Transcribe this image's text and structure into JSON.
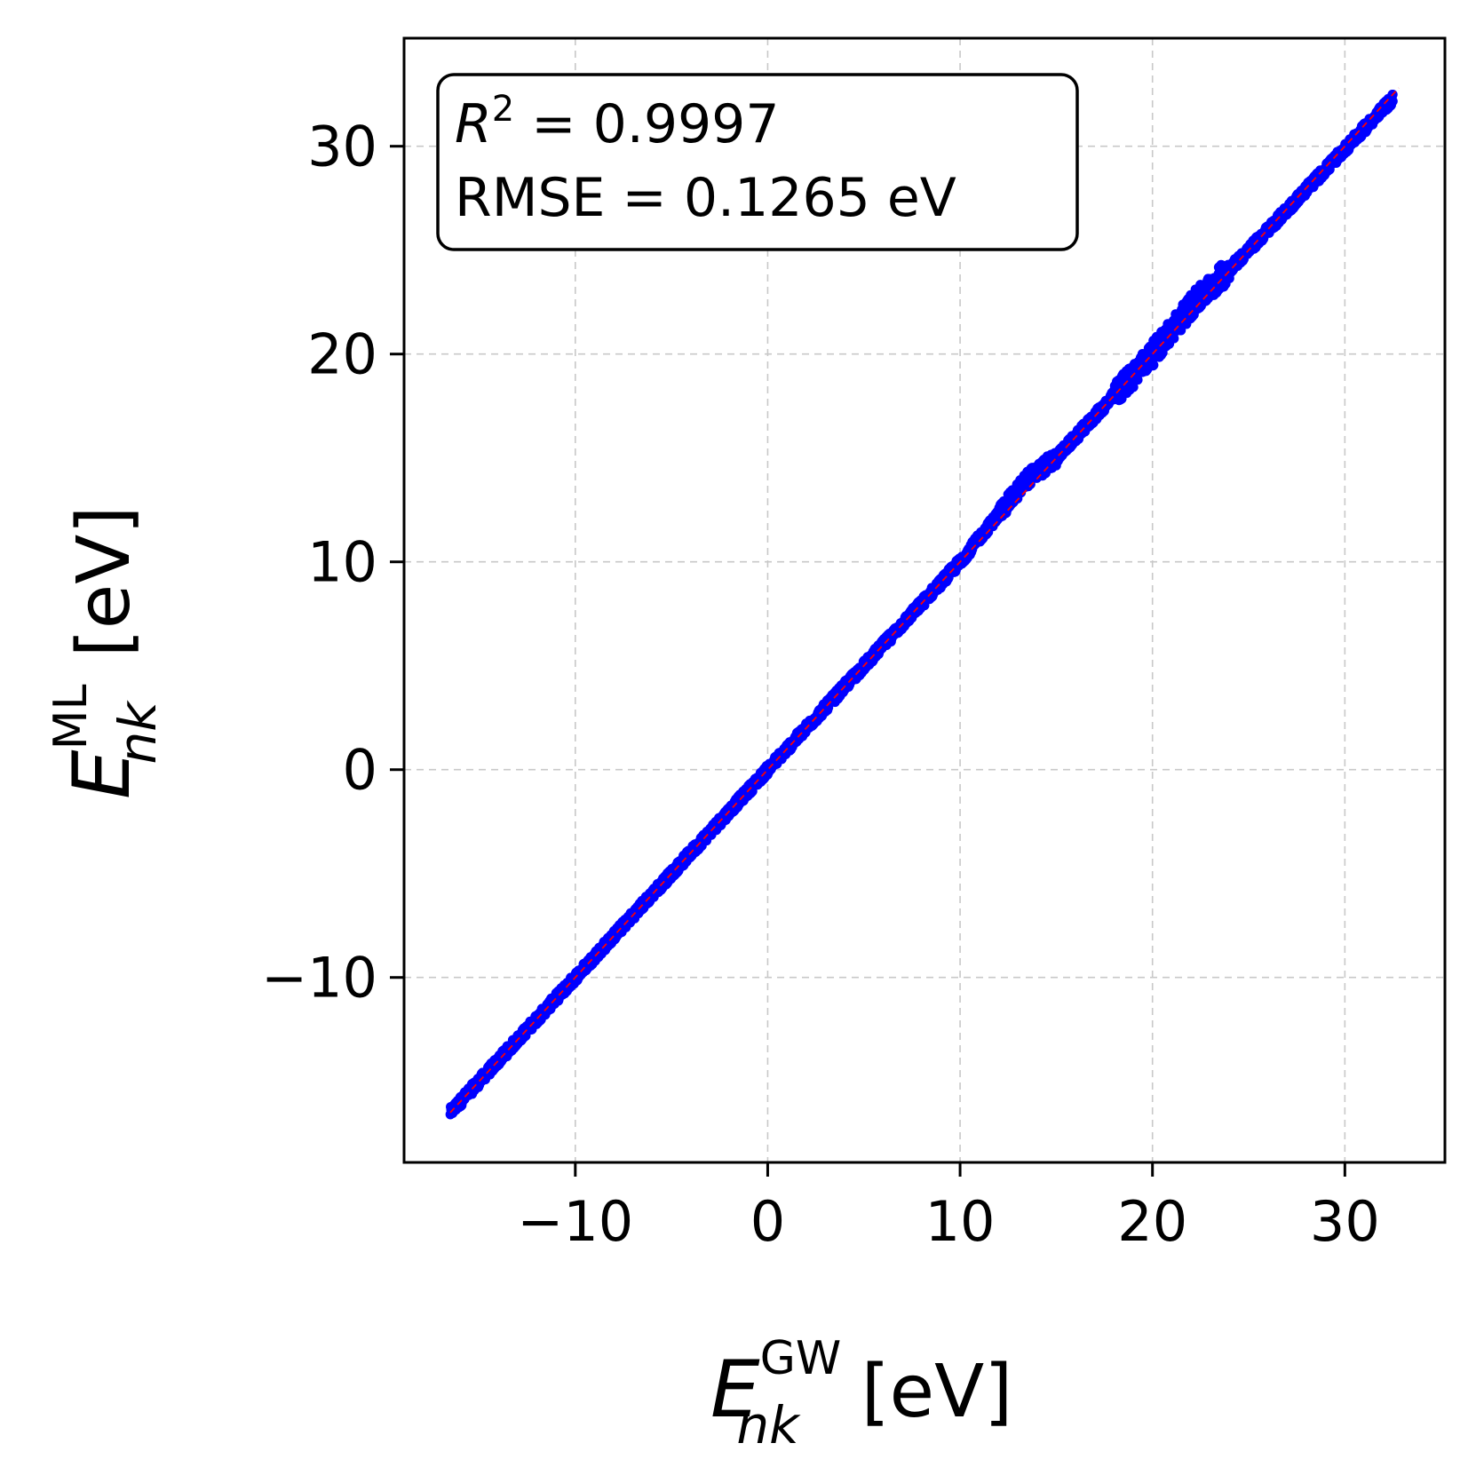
{
  "chart_data": {
    "type": "scatter",
    "title": "",
    "xlabel": {
      "symbol": "E",
      "subscript": "nk",
      "superscript": "GW",
      "unit": "[eV]"
    },
    "ylabel": {
      "symbol": "E",
      "subscript": "nk",
      "superscript": "ML",
      "unit": "[eV]"
    },
    "xlim": [
      -18.9,
      35.2
    ],
    "ylim": [
      -18.9,
      35.2
    ],
    "xticks": [
      -10,
      0,
      10,
      20,
      30
    ],
    "yticks": [
      -10,
      0,
      10,
      20,
      30
    ],
    "xtick_labels": [
      "−10",
      "0",
      "10",
      "20",
      "30"
    ],
    "ytick_labels": [
      "−10",
      "0",
      "10",
      "20",
      "30"
    ],
    "grid": true,
    "annotation": {
      "r2_label": "R",
      "r2_exp": "2",
      "r2_value": " = 0.9997",
      "rmse_text": "RMSE = 0.1265 eV",
      "placement": "top-left"
    },
    "series": [
      {
        "marker_color": "#0000ff",
        "x_range": [
          -16.5,
          32.5
        ],
        "trend_points": [
          {
            "x": -16.5,
            "y": -16.5
          },
          {
            "x": -12.5,
            "y": -12.5
          },
          {
            "x": -10,
            "y": -10
          },
          {
            "x": -6,
            "y": -6
          },
          {
            "x": -2,
            "y": -2
          },
          {
            "x": 0,
            "y": 0
          },
          {
            "x": 5,
            "y": 5
          },
          {
            "x": 10,
            "y": 10
          },
          {
            "x": 13.5,
            "y": 14
          },
          {
            "x": 15,
            "y": 15
          },
          {
            "x": 20,
            "y": 20
          },
          {
            "x": 22,
            "y": 22.3
          },
          {
            "x": 25,
            "y": 25
          },
          {
            "x": 32.5,
            "y": 32.3
          }
        ]
      }
    ],
    "reference_line": {
      "x": [
        -16.5,
        32.8
      ],
      "y": [
        -16.5,
        32.8
      ],
      "style": "dashed",
      "color": "#ff0000"
    }
  }
}
